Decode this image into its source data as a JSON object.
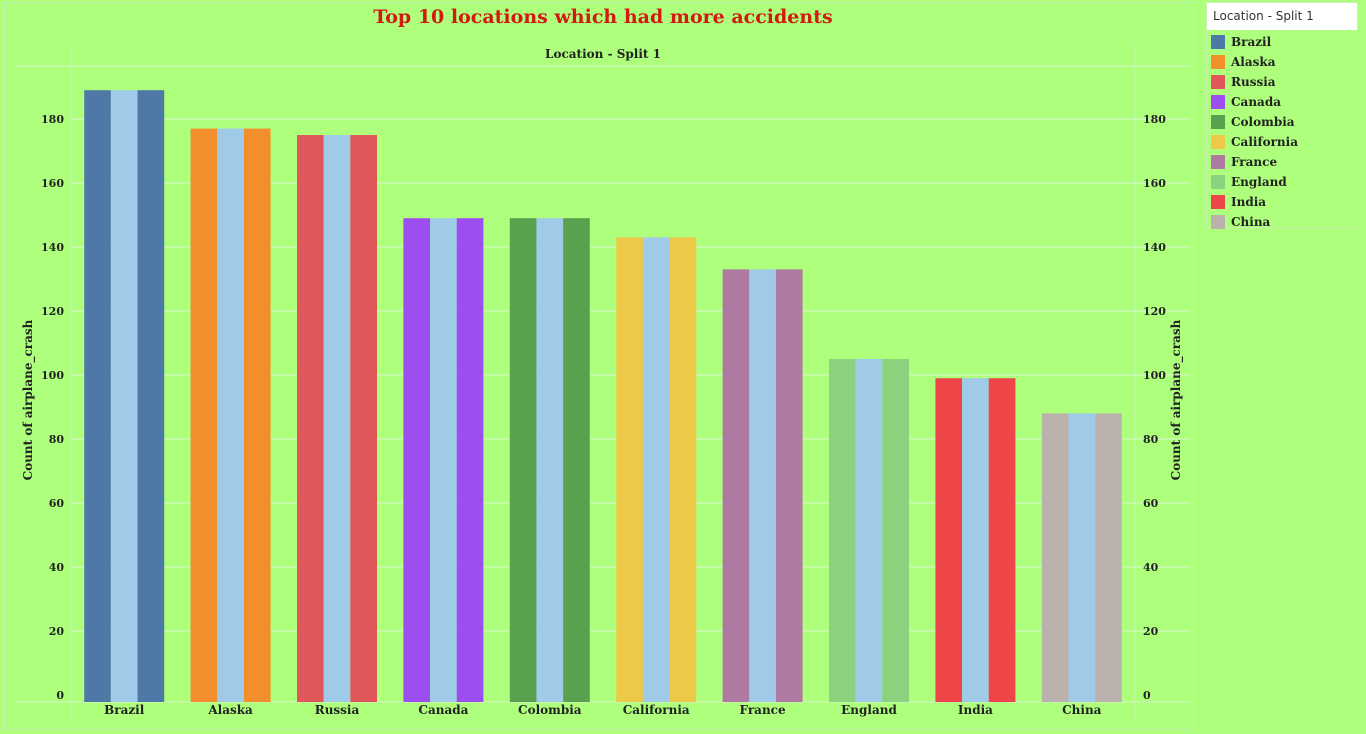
{
  "chart_data": {
    "type": "bar",
    "title": "Top 10 locations which had more accidents",
    "subtitle": "Location - Split 1",
    "ylabel": "Count of airplane_crash",
    "xlabel": "",
    "categories": [
      "Brazil",
      "Alaska",
      "Russia",
      "Canada",
      "Colombia",
      "California",
      "France",
      "England",
      "India",
      "China"
    ],
    "values": [
      189,
      177,
      175,
      149,
      149,
      143,
      133,
      105,
      99,
      88
    ],
    "colors": [
      "#4e79a7",
      "#f28e2b",
      "#e15759",
      "#9c4ef0",
      "#59a14f",
      "#edc949",
      "#af7aa1",
      "#8cd17d",
      "#ee4549",
      "#bab0ac"
    ],
    "overlay_color": "#a0cbe8",
    "ylim": [
      0,
      200
    ],
    "yticks": [
      0,
      20,
      40,
      60,
      80,
      100,
      120,
      140,
      160,
      180
    ],
    "grid": true,
    "dual_y_axis": true,
    "legend_position": "right"
  },
  "legend": {
    "title": "Location - Split 1"
  }
}
